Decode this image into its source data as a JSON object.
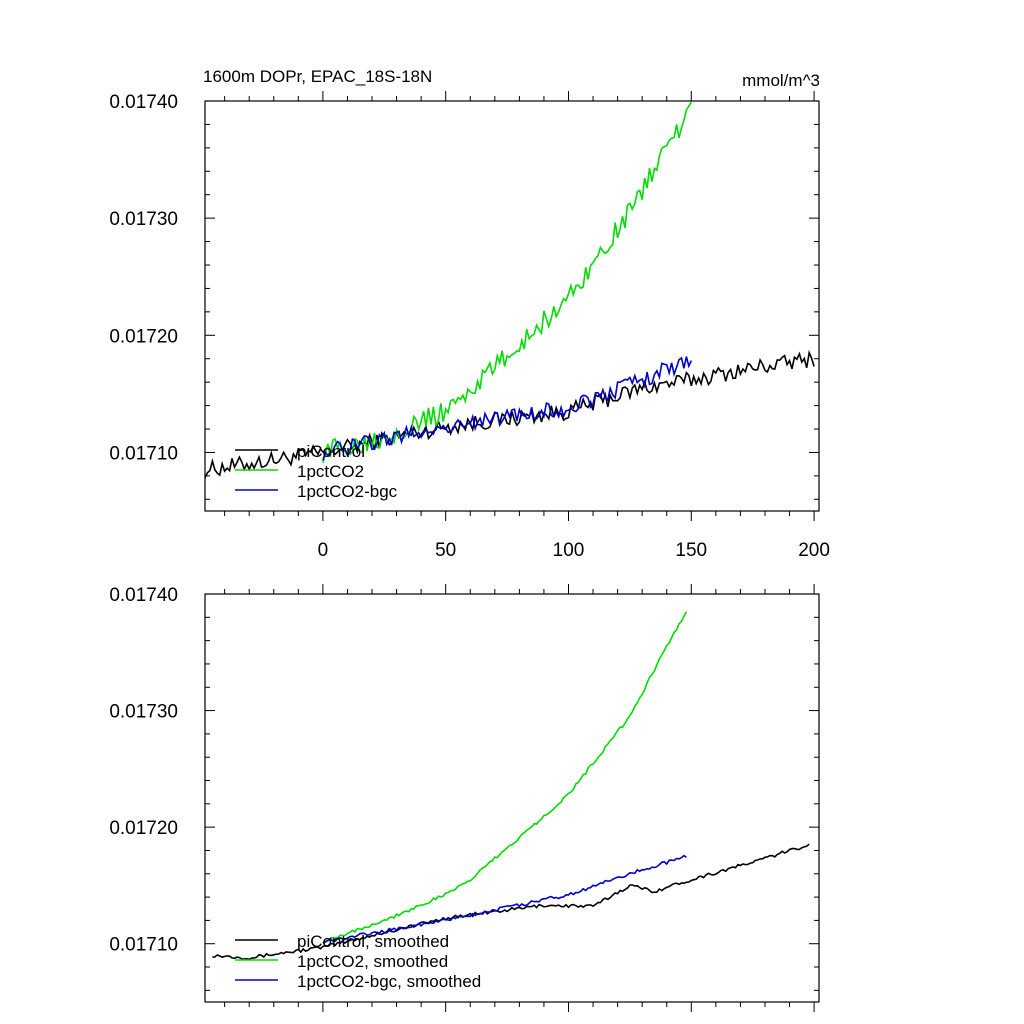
{
  "chart_data": [
    {
      "type": "line",
      "title": "1600m DOPr, EPAC_18S-18N",
      "units": "mmol/m^3",
      "xlabel": "",
      "ylabel": "",
      "xlim": [
        -48,
        202
      ],
      "ylim": [
        0.01705,
        0.0174
      ],
      "xticks": [
        0,
        50,
        100,
        150,
        200
      ],
      "yticks": [
        0.0171,
        0.0172,
        0.0173,
        0.0174
      ],
      "ytick_labels": [
        "0.01710",
        "0.01720",
        "0.01730",
        "0.01740"
      ],
      "show_xtick_labels": true,
      "grid": false,
      "legend_position": "lower-left",
      "series": [
        {
          "name": "piControl",
          "color": "#000000",
          "noise": 7e-06,
          "x": [
            -48,
            0,
            50,
            100,
            130,
            150,
            175,
            200
          ],
          "y": [
            0.017085,
            0.0171,
            0.017122,
            0.017135,
            0.017155,
            0.017162,
            0.017172,
            0.01718
          ]
        },
        {
          "name": "1pctCO2",
          "color": "#00dd00",
          "noise": 9e-06,
          "x": [
            0,
            25,
            50,
            75,
            100,
            125,
            140,
            150
          ],
          "y": [
            0.0171,
            0.017114,
            0.017135,
            0.017182,
            0.017232,
            0.017305,
            0.017362,
            0.01739
          ]
        },
        {
          "name": "1pctCO2-bgc",
          "color": "#0000cc",
          "noise": 7e-06,
          "x": [
            0,
            50,
            100,
            130,
            150
          ],
          "y": [
            0.0171,
            0.017122,
            0.017138,
            0.017162,
            0.01718
          ]
        }
      ]
    },
    {
      "type": "line",
      "title": "",
      "units": "",
      "xlabel": "",
      "ylabel": "",
      "xlim": [
        -48,
        202
      ],
      "ylim": [
        0.01705,
        0.0174
      ],
      "xticks": [
        0,
        50,
        100,
        150,
        200
      ],
      "yticks": [
        0.0171,
        0.0172,
        0.0173,
        0.0174
      ],
      "ytick_labels": [
        "0.01710",
        "0.01720",
        "0.01730",
        "0.01740"
      ],
      "show_xtick_labels": false,
      "grid": false,
      "legend_position": "lower-left",
      "series": [
        {
          "name": "piControl, smoothed",
          "color": "#000000",
          "noise": 1.5e-06,
          "x": [
            -45,
            -30,
            0,
            50,
            90,
            110,
            125,
            135,
            150,
            175,
            198
          ],
          "y": [
            0.01709,
            0.017088,
            0.017097,
            0.017122,
            0.017133,
            0.017132,
            0.01715,
            0.017145,
            0.017155,
            0.01717,
            0.017185
          ]
        },
        {
          "name": "1pctCO2, smoothed",
          "color": "#00dd00",
          "noise": 1.5e-06,
          "x": [
            0,
            25,
            50,
            60,
            75,
            100,
            125,
            140,
            148
          ],
          "y": [
            0.017102,
            0.01712,
            0.017142,
            0.017155,
            0.017182,
            0.017228,
            0.017295,
            0.017355,
            0.017385
          ]
        },
        {
          "name": "1pctCO2-bgc, smoothed",
          "color": "#0000cc",
          "noise": 1.5e-06,
          "x": [
            0,
            50,
            100,
            125,
            148
          ],
          "y": [
            0.017102,
            0.01712,
            0.017142,
            0.01716,
            0.017175
          ]
        }
      ]
    }
  ]
}
